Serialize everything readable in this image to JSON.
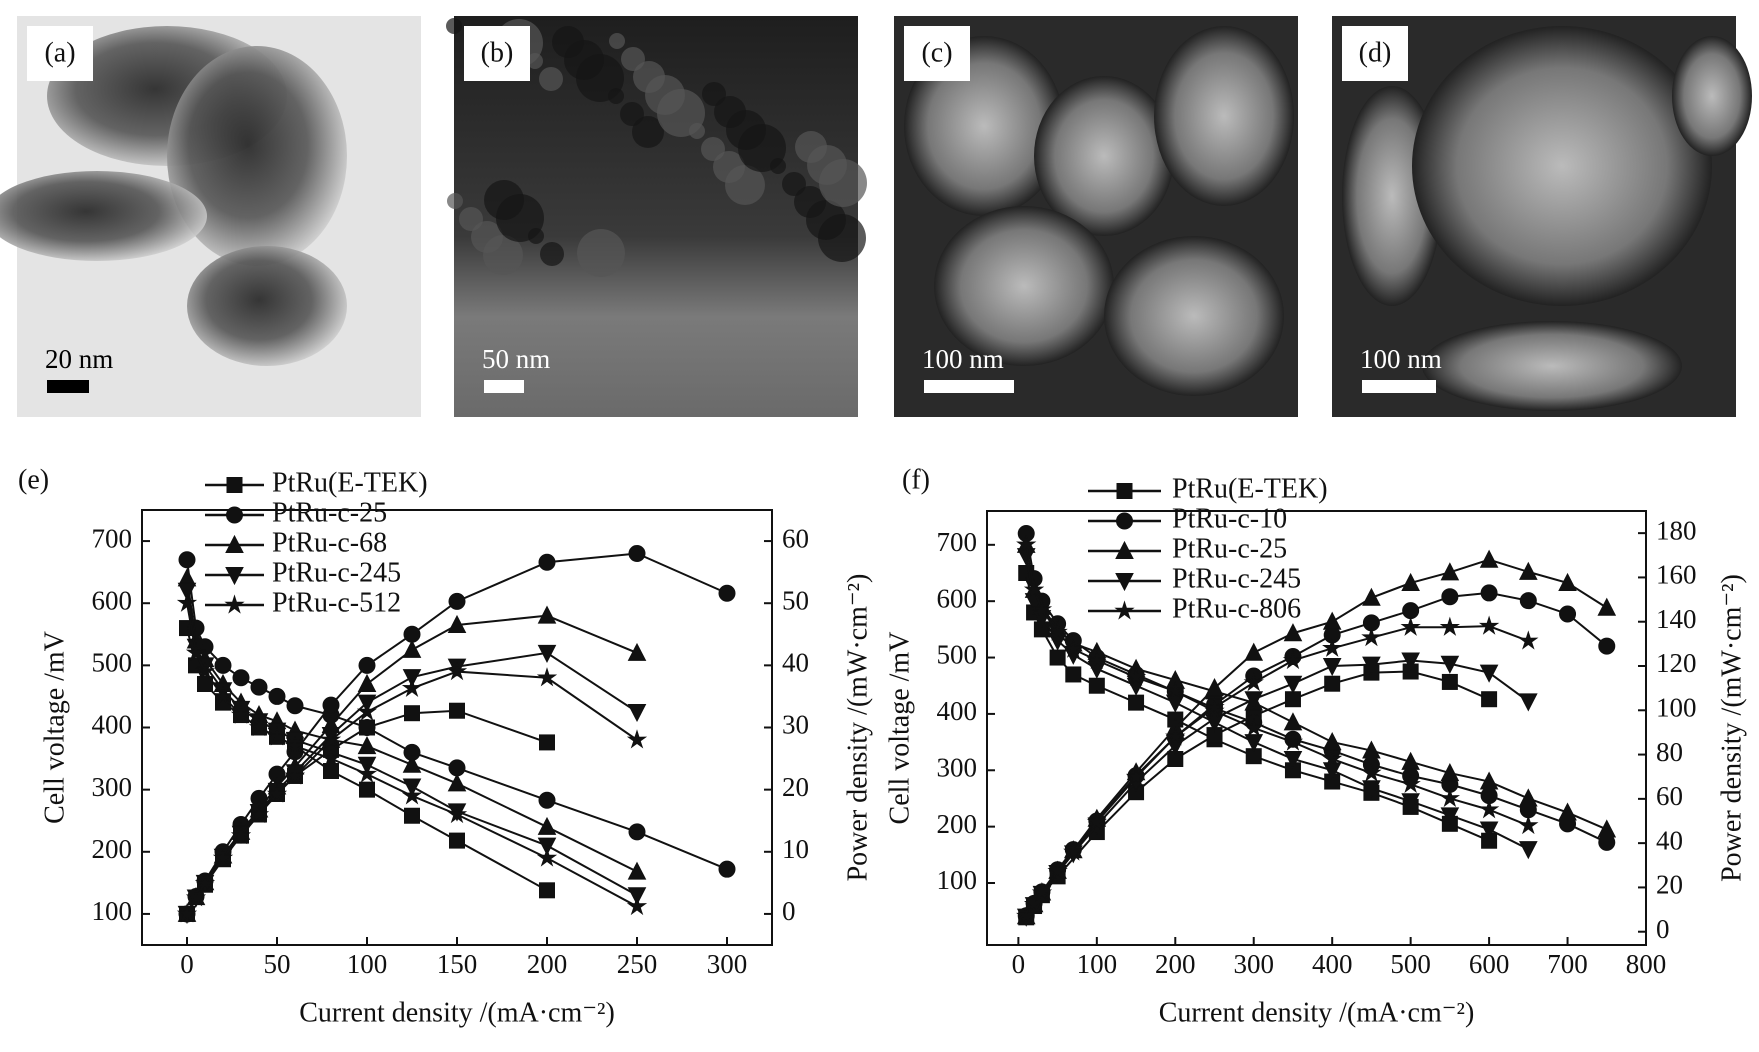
{
  "images": [
    {
      "label": "(a)",
      "scale": "20 nm"
    },
    {
      "label": "(b)",
      "scale": "50 nm"
    },
    {
      "label": "(c)",
      "scale": "100 nm"
    },
    {
      "label": "(d)",
      "scale": "100 nm"
    }
  ],
  "chart_data": [
    {
      "type": "line",
      "panel": "(e)",
      "xlabel": "Current density /(mA·cm⁻²)",
      "ylabel": "Cell voltage /mV",
      "y2label": "Power density /(mW·cm⁻²)",
      "xlim": [
        -25,
        325
      ],
      "xticks": [
        0,
        50,
        100,
        150,
        200,
        250,
        300
      ],
      "ylim": [
        50,
        750
      ],
      "yticks": [
        100,
        200,
        300,
        400,
        500,
        600,
        700
      ],
      "y2lim": [
        -5,
        65
      ],
      "y2ticks": [
        0,
        10,
        20,
        30,
        40,
        50,
        60
      ],
      "series": [
        {
          "name": "PtRu(E-TEK)",
          "marker": "square",
          "color": "#111111",
          "x": [
            0,
            5,
            10,
            20,
            30,
            40,
            50,
            60,
            80,
            100,
            125,
            150,
            200
          ],
          "values": [
            560,
            500,
            470,
            440,
            420,
            400,
            385,
            370,
            330,
            300,
            258,
            218,
            138
          ],
          "power": {
            "axis": "y2",
            "x": [
              0,
              10,
              20,
              30,
              40,
              50,
              60,
              80,
              100,
              125,
              150,
              200
            ],
            "values": [
              0,
              4.7,
              8.8,
              12.6,
              16,
              19.3,
              22.2,
              26.4,
              30,
              32.3,
              32.7,
              27.6
            ]
          }
        },
        {
          "name": "PtRu-c-25",
          "marker": "circle",
          "color": "#111111",
          "x": [
            0,
            5,
            10,
            20,
            30,
            40,
            50,
            60,
            80,
            100,
            125,
            150,
            200,
            250,
            300
          ],
          "values": [
            670,
            560,
            530,
            500,
            480,
            465,
            450,
            435,
            420,
            400,
            360,
            335,
            283,
            232,
            172
          ],
          "power": {
            "axis": "y2",
            "x": [
              0,
              5,
              10,
              20,
              30,
              40,
              50,
              60,
              80,
              100,
              125,
              150,
              200,
              250,
              300
            ],
            "values": [
              0,
              2.8,
              5.3,
              10,
              14.4,
              18.6,
              22.5,
              26.1,
              33.6,
              40,
              45,
              50.3,
              56.6,
              58,
              51.6
            ]
          }
        },
        {
          "name": "PtRu-c-68",
          "marker": "triangle-up",
          "color": "#111111",
          "x": [
            0,
            5,
            10,
            20,
            30,
            40,
            50,
            60,
            80,
            100,
            125,
            150,
            200,
            250
          ],
          "values": [
            640,
            540,
            510,
            470,
            440,
            420,
            410,
            395,
            380,
            370,
            340,
            310,
            240,
            168
          ],
          "power": {
            "axis": "y2",
            "x": [
              0,
              5,
              10,
              20,
              30,
              40,
              50,
              60,
              80,
              100,
              125,
              150,
              200,
              250
            ],
            "values": [
              0,
              2.7,
              5.1,
              9.4,
              13.2,
              16.8,
              20.5,
              23.7,
              30.4,
              37,
              42.5,
              46.5,
              48,
              42
            ]
          }
        },
        {
          "name": "PtRu-c-245",
          "marker": "triangle-down",
          "color": "#111111",
          "x": [
            0,
            5,
            10,
            20,
            30,
            40,
            50,
            60,
            80,
            100,
            125,
            150,
            200,
            250
          ],
          "values": [
            620,
            530,
            500,
            460,
            430,
            410,
            395,
            380,
            360,
            340,
            305,
            265,
            210,
            130
          ],
          "power": {
            "axis": "y2",
            "x": [
              0,
              5,
              10,
              20,
              30,
              40,
              50,
              60,
              80,
              100,
              125,
              150,
              200,
              250
            ],
            "values": [
              0,
              2.65,
              5,
              9.2,
              12.9,
              16.4,
              19.8,
              22.8,
              28.8,
              34,
              38.1,
              39.8,
              42,
              32.5
            ]
          }
        },
        {
          "name": "PtRu-c-512",
          "marker": "star",
          "color": "#111111",
          "x": [
            0,
            5,
            10,
            20,
            30,
            40,
            50,
            60,
            80,
            100,
            125,
            150,
            200,
            250
          ],
          "values": [
            600,
            520,
            490,
            450,
            420,
            400,
            385,
            370,
            350,
            325,
            290,
            260,
            190,
            112
          ],
          "power": {
            "axis": "y2",
            "x": [
              0,
              5,
              10,
              20,
              30,
              40,
              50,
              60,
              80,
              100,
              125,
              150,
              200,
              250
            ],
            "values": [
              0,
              2.6,
              4.9,
              9,
              12.6,
              16,
              19.3,
              22.2,
              28,
              32.5,
              36.3,
              39,
              38,
              28
            ]
          }
        }
      ]
    },
    {
      "type": "line",
      "panel": "(f)",
      "xlabel": "Current density /(mA·cm⁻²)",
      "ylabel": "Cell voltage /mV",
      "y2label": "Power density /(mW·cm⁻²)",
      "xlim": [
        -40,
        800
      ],
      "xticks": [
        0,
        100,
        200,
        300,
        400,
        500,
        600,
        700,
        800
      ],
      "ylim": [
        -10,
        760
      ],
      "yticks": [
        100,
        200,
        300,
        400,
        500,
        600,
        700
      ],
      "y2lim": [
        -6,
        190
      ],
      "y2ticks": [
        0,
        20,
        40,
        60,
        80,
        100,
        120,
        140,
        160,
        180
      ],
      "series": [
        {
          "name": "PtRu(E-TEK)",
          "marker": "square",
          "color": "#111111",
          "x": [
            10,
            20,
            30,
            50,
            70,
            100,
            150,
            200,
            250,
            300,
            350,
            400,
            450,
            500,
            550,
            600
          ],
          "values": [
            650,
            580,
            550,
            500,
            470,
            450,
            420,
            390,
            355,
            325,
            300,
            280,
            260,
            235,
            205,
            175
          ],
          "power": {
            "axis": "y2",
            "x": [
              10,
              20,
              30,
              50,
              100,
              150,
              200,
              250,
              300,
              350,
              400,
              450,
              500,
              550,
              600
            ],
            "values": [
              6.5,
              11.6,
              16.5,
              25,
              45,
              63,
              78,
              88.8,
              97.5,
              105,
              112,
              117,
              117.5,
              112.8,
              105
            ]
          }
        },
        {
          "name": "PtRu-c-10",
          "marker": "circle",
          "color": "#111111",
          "x": [
            10,
            20,
            30,
            50,
            70,
            100,
            150,
            200,
            250,
            300,
            350,
            400,
            450,
            500,
            550,
            600,
            650,
            700,
            750
          ],
          "values": [
            720,
            640,
            600,
            560,
            530,
            500,
            470,
            440,
            410,
            385,
            355,
            335,
            310,
            290,
            275,
            255,
            230,
            205,
            172
          ],
          "power": {
            "axis": "y2",
            "x": [
              10,
              20,
              30,
              50,
              70,
              100,
              150,
              200,
              250,
              300,
              350,
              400,
              450,
              500,
              550,
              600,
              650,
              700,
              750
            ],
            "values": [
              7.2,
              12.8,
              18,
              28,
              37.1,
              50,
              70.5,
              88,
              102.5,
              115.5,
              124.3,
              134,
              139.5,
              145,
              151.3,
              153,
              149.5,
              143.5,
              129
            ]
          }
        },
        {
          "name": "PtRu-c-25",
          "marker": "triangle-up",
          "color": "#111111",
          "x": [
            10,
            20,
            30,
            50,
            70,
            100,
            150,
            200,
            250,
            300,
            350,
            400,
            450,
            500,
            550,
            600,
            650,
            700,
            750
          ],
          "values": [
            700,
            620,
            590,
            550,
            525,
            510,
            480,
            460,
            440,
            420,
            385,
            350,
            335,
            315,
            295,
            280,
            250,
            225,
            195
          ],
          "power": {
            "axis": "y2",
            "x": [
              10,
              20,
              30,
              50,
              70,
              100,
              150,
              200,
              250,
              300,
              350,
              400,
              450,
              500,
              550,
              600,
              650,
              700,
              750
            ],
            "values": [
              7,
              12.4,
              17.7,
              27.5,
              36.8,
              51,
              72,
              92,
              110,
              126,
              134.8,
              140,
              150.8,
              157.5,
              162.3,
              168,
              162.5,
              157.5,
              146.3
            ]
          }
        },
        {
          "name": "PtRu-c-245",
          "marker": "triangle-down",
          "color": "#111111",
          "x": [
            10,
            20,
            30,
            50,
            70,
            100,
            150,
            200,
            250,
            300,
            350,
            400,
            450,
            500,
            550,
            600,
            650
          ],
          "values": [
            680,
            600,
            570,
            530,
            505,
            480,
            450,
            420,
            385,
            350,
            320,
            300,
            268,
            245,
            220,
            195,
            160
          ],
          "power": {
            "axis": "y2",
            "x": [
              10,
              20,
              30,
              50,
              70,
              100,
              150,
              200,
              250,
              300,
              350,
              400,
              450,
              500,
              550,
              600,
              650
            ],
            "values": [
              6.8,
              12,
              17.1,
              26.5,
              35.4,
              48,
              67.5,
              84,
              96.3,
              105,
              112,
              120,
              120.6,
              122.5,
              121,
              117,
              104
            ]
          }
        },
        {
          "name": "PtRu-c-806",
          "marker": "star",
          "color": "#111111",
          "x": [
            10,
            20,
            30,
            50,
            70,
            100,
            150,
            200,
            250,
            300,
            350,
            400,
            450,
            500,
            550,
            600,
            650
          ],
          "values": [
            700,
            620,
            585,
            545,
            515,
            495,
            465,
            440,
            405,
            375,
            350,
            320,
            295,
            275,
            250,
            230,
            202
          ],
          "power": {
            "axis": "y2",
            "x": [
              10,
              20,
              30,
              50,
              70,
              100,
              150,
              200,
              250,
              300,
              350,
              400,
              450,
              500,
              550,
              600,
              650
            ],
            "values": [
              7,
              12.4,
              17.6,
              27.3,
              36,
              49.5,
              69.8,
              88,
              101.3,
              112.5,
              122.5,
              128,
              132.8,
              137.5,
              137.5,
              138,
              131.3
            ]
          }
        }
      ]
    }
  ]
}
